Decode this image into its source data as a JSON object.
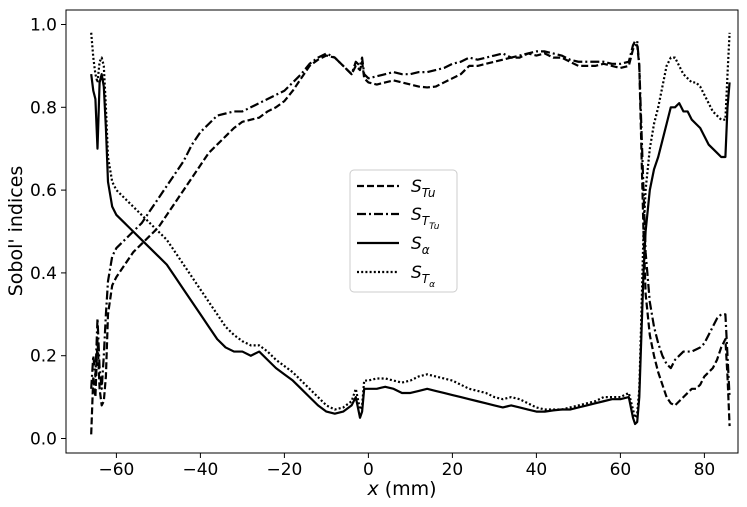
{
  "chart_data": {
    "type": "line",
    "title": "",
    "xlabel_var": "x",
    "xlabel_unit": "(mm)",
    "ylabel": "Sobol' indices",
    "xlim": [
      -72,
      88
    ],
    "ylim": [
      -0.035,
      1.035
    ],
    "xticks": [
      -60,
      -40,
      -20,
      0,
      20,
      40,
      60,
      80
    ],
    "xtick_labels": [
      "−60",
      "−40",
      "−20",
      "0",
      "20",
      "40",
      "60",
      "80"
    ],
    "yticks": [
      0.0,
      0.2,
      0.4,
      0.6,
      0.8,
      1.0
    ],
    "ytick_labels": [
      "0.0",
      "0.2",
      "0.4",
      "0.6",
      "0.8",
      "1.0"
    ],
    "grid": false,
    "legend_position": "center",
    "series": [
      {
        "name": "S_Tu",
        "label_main": "S",
        "label_sub": "Tu",
        "label_subsub": "",
        "style": "dashed",
        "x": [
          -66,
          -65.5,
          -65,
          -64.5,
          -64,
          -63.5,
          -63,
          -62.5,
          -62,
          -61,
          -60,
          -58,
          -56,
          -54,
          -52,
          -50,
          -48,
          -46,
          -44,
          -42,
          -40,
          -38,
          -36,
          -34,
          -32,
          -30,
          -28,
          -26,
          -24,
          -22,
          -20,
          -18,
          -16,
          -14,
          -12,
          -10,
          -8,
          -6,
          -4,
          -3,
          -2,
          -1.5,
          -1,
          0,
          2,
          4,
          6,
          8,
          10,
          12,
          14,
          16,
          18,
          20,
          22,
          24,
          26,
          28,
          30,
          32,
          34,
          36,
          38,
          40,
          42,
          44,
          46,
          48,
          50,
          52,
          54,
          56,
          58,
          60,
          62,
          63,
          63.5,
          64,
          64.5,
          65,
          65.5,
          66,
          67,
          68,
          69,
          70,
          71,
          72,
          73,
          74,
          75,
          76,
          77,
          78,
          79,
          80,
          81,
          82,
          83,
          84,
          85,
          85.5,
          86
        ],
        "values": [
          0.01,
          0.15,
          0.1,
          0.24,
          0.12,
          0.08,
          0.09,
          0.15,
          0.3,
          0.37,
          0.39,
          0.42,
          0.45,
          0.47,
          0.49,
          0.51,
          0.54,
          0.57,
          0.6,
          0.63,
          0.66,
          0.69,
          0.71,
          0.73,
          0.75,
          0.765,
          0.77,
          0.775,
          0.79,
          0.8,
          0.815,
          0.84,
          0.87,
          0.9,
          0.915,
          0.925,
          0.92,
          0.9,
          0.88,
          0.9,
          0.89,
          0.91,
          0.87,
          0.86,
          0.855,
          0.86,
          0.865,
          0.86,
          0.855,
          0.85,
          0.848,
          0.85,
          0.86,
          0.87,
          0.88,
          0.9,
          0.9,
          0.905,
          0.91,
          0.915,
          0.92,
          0.92,
          0.93,
          0.925,
          0.93,
          0.92,
          0.92,
          0.91,
          0.9,
          0.9,
          0.9,
          0.905,
          0.9,
          0.895,
          0.9,
          0.94,
          0.95,
          0.95,
          0.9,
          0.7,
          0.5,
          0.35,
          0.25,
          0.2,
          0.16,
          0.13,
          0.1,
          0.085,
          0.08,
          0.09,
          0.1,
          0.11,
          0.12,
          0.12,
          0.13,
          0.15,
          0.16,
          0.17,
          0.19,
          0.22,
          0.24,
          0.15,
          0.03
        ]
      },
      {
        "name": "S_T_Tu",
        "label_main": "S",
        "label_sub": "T",
        "label_subsub": "Tu",
        "style": "dashdot",
        "x": [
          -66,
          -65.5,
          -65,
          -64.5,
          -64,
          -63.5,
          -63,
          -62.5,
          -62,
          -61,
          -60,
          -58,
          -56,
          -54,
          -52,
          -50,
          -48,
          -46,
          -44,
          -42,
          -40,
          -38,
          -36,
          -34,
          -32,
          -30,
          -28,
          -26,
          -24,
          -22,
          -20,
          -18,
          -16,
          -14,
          -12,
          -10,
          -8,
          -6,
          -4,
          -3,
          -2,
          -1.5,
          -1,
          0,
          2,
          4,
          6,
          8,
          10,
          12,
          14,
          16,
          18,
          20,
          22,
          24,
          26,
          28,
          30,
          32,
          34,
          36,
          38,
          40,
          42,
          44,
          46,
          48,
          50,
          52,
          54,
          56,
          58,
          60,
          62,
          63,
          63.5,
          64,
          64.5,
          65,
          65.5,
          66,
          67,
          68,
          69,
          70,
          71,
          72,
          73,
          74,
          75,
          76,
          77,
          78,
          79,
          80,
          81,
          82,
          83,
          84,
          85,
          85.5,
          86
        ],
        "values": [
          0.12,
          0.2,
          0.15,
          0.29,
          0.17,
          0.12,
          0.2,
          0.3,
          0.38,
          0.44,
          0.46,
          0.48,
          0.5,
          0.52,
          0.55,
          0.58,
          0.61,
          0.64,
          0.67,
          0.71,
          0.74,
          0.76,
          0.78,
          0.785,
          0.79,
          0.79,
          0.8,
          0.81,
          0.82,
          0.83,
          0.84,
          0.86,
          0.88,
          0.905,
          0.92,
          0.93,
          0.92,
          0.9,
          0.88,
          0.91,
          0.9,
          0.92,
          0.88,
          0.87,
          0.875,
          0.88,
          0.885,
          0.88,
          0.88,
          0.885,
          0.885,
          0.89,
          0.895,
          0.905,
          0.91,
          0.92,
          0.915,
          0.92,
          0.925,
          0.93,
          0.92,
          0.925,
          0.93,
          0.935,
          0.935,
          0.93,
          0.925,
          0.915,
          0.91,
          0.91,
          0.91,
          0.91,
          0.905,
          0.905,
          0.91,
          0.95,
          0.96,
          0.96,
          0.9,
          0.75,
          0.6,
          0.45,
          0.33,
          0.27,
          0.23,
          0.2,
          0.18,
          0.17,
          0.19,
          0.2,
          0.21,
          0.21,
          0.21,
          0.215,
          0.22,
          0.23,
          0.25,
          0.27,
          0.29,
          0.3,
          0.3,
          0.2,
          0.1
        ]
      },
      {
        "name": "S_alpha",
        "label_main": "S",
        "label_sub": "α",
        "label_subsub": "",
        "style": "solid",
        "x": [
          -66,
          -65.5,
          -65,
          -64.5,
          -64,
          -63.5,
          -63,
          -62.5,
          -62,
          -61,
          -60,
          -58,
          -56,
          -54,
          -52,
          -50,
          -48,
          -46,
          -44,
          -42,
          -40,
          -38,
          -36,
          -34,
          -32,
          -30,
          -28,
          -26,
          -24,
          -22,
          -20,
          -18,
          -16,
          -14,
          -12,
          -10,
          -8,
          -6,
          -4,
          -3,
          -2,
          -1.5,
          -1,
          0,
          2,
          4,
          6,
          8,
          10,
          12,
          14,
          16,
          18,
          20,
          22,
          24,
          26,
          28,
          30,
          32,
          34,
          36,
          38,
          40,
          42,
          44,
          46,
          48,
          50,
          52,
          54,
          56,
          58,
          60,
          62,
          63,
          63.5,
          64,
          64.5,
          65,
          65.5,
          66,
          67,
          68,
          69,
          70,
          71,
          72,
          73,
          74,
          75,
          76,
          77,
          78,
          79,
          80,
          81,
          82,
          83,
          84,
          85,
          85.5,
          86
        ],
        "values": [
          0.88,
          0.84,
          0.82,
          0.7,
          0.86,
          0.88,
          0.85,
          0.75,
          0.62,
          0.56,
          0.54,
          0.52,
          0.5,
          0.48,
          0.46,
          0.44,
          0.42,
          0.39,
          0.36,
          0.33,
          0.3,
          0.27,
          0.24,
          0.22,
          0.21,
          0.21,
          0.2,
          0.21,
          0.19,
          0.17,
          0.155,
          0.14,
          0.12,
          0.1,
          0.08,
          0.065,
          0.06,
          0.065,
          0.08,
          0.1,
          0.05,
          0.065,
          0.12,
          0.12,
          0.12,
          0.125,
          0.12,
          0.11,
          0.11,
          0.115,
          0.12,
          0.115,
          0.11,
          0.105,
          0.1,
          0.095,
          0.09,
          0.085,
          0.08,
          0.075,
          0.08,
          0.075,
          0.07,
          0.065,
          0.065,
          0.068,
          0.07,
          0.07,
          0.075,
          0.08,
          0.085,
          0.09,
          0.095,
          0.095,
          0.1,
          0.05,
          0.035,
          0.04,
          0.1,
          0.25,
          0.4,
          0.5,
          0.6,
          0.65,
          0.68,
          0.72,
          0.76,
          0.8,
          0.8,
          0.81,
          0.79,
          0.79,
          0.77,
          0.76,
          0.75,
          0.73,
          0.71,
          0.7,
          0.69,
          0.68,
          0.68,
          0.8,
          0.86
        ]
      },
      {
        "name": "S_T_alpha",
        "label_main": "S",
        "label_sub": "T",
        "label_subsub": "α",
        "style": "dotted",
        "x": [
          -66,
          -65.5,
          -65,
          -64.5,
          -64,
          -63.5,
          -63,
          -62.5,
          -62,
          -61,
          -60,
          -58,
          -56,
          -54,
          -52,
          -50,
          -48,
          -46,
          -44,
          -42,
          -40,
          -38,
          -36,
          -34,
          -32,
          -30,
          -28,
          -26,
          -24,
          -22,
          -20,
          -18,
          -16,
          -14,
          -12,
          -10,
          -8,
          -6,
          -4,
          -3,
          -2,
          -1.5,
          -1,
          0,
          2,
          4,
          6,
          8,
          10,
          12,
          14,
          16,
          18,
          20,
          22,
          24,
          26,
          28,
          30,
          32,
          34,
          36,
          38,
          40,
          42,
          44,
          46,
          48,
          50,
          52,
          54,
          56,
          58,
          60,
          62,
          63,
          63.5,
          64,
          64.5,
          65,
          65.5,
          66,
          67,
          68,
          69,
          70,
          71,
          72,
          73,
          74,
          75,
          76,
          77,
          78,
          79,
          80,
          81,
          82,
          83,
          84,
          85,
          85.5,
          86
        ],
        "values": [
          0.98,
          0.92,
          0.88,
          0.86,
          0.91,
          0.92,
          0.9,
          0.8,
          0.68,
          0.62,
          0.6,
          0.58,
          0.56,
          0.54,
          0.52,
          0.5,
          0.48,
          0.45,
          0.42,
          0.39,
          0.36,
          0.33,
          0.3,
          0.27,
          0.25,
          0.235,
          0.225,
          0.225,
          0.21,
          0.19,
          0.175,
          0.16,
          0.14,
          0.12,
          0.1,
          0.08,
          0.07,
          0.075,
          0.09,
          0.12,
          0.07,
          0.08,
          0.14,
          0.14,
          0.145,
          0.145,
          0.14,
          0.135,
          0.14,
          0.15,
          0.155,
          0.15,
          0.145,
          0.14,
          0.13,
          0.12,
          0.115,
          0.11,
          0.1,
          0.095,
          0.1,
          0.095,
          0.085,
          0.075,
          0.07,
          0.07,
          0.07,
          0.075,
          0.08,
          0.085,
          0.09,
          0.1,
          0.1,
          0.1,
          0.11,
          0.07,
          0.05,
          0.06,
          0.12,
          0.3,
          0.5,
          0.6,
          0.7,
          0.76,
          0.8,
          0.85,
          0.9,
          0.92,
          0.92,
          0.9,
          0.88,
          0.87,
          0.86,
          0.86,
          0.85,
          0.83,
          0.81,
          0.79,
          0.78,
          0.77,
          0.77,
          0.88,
          0.98
        ]
      }
    ]
  }
}
